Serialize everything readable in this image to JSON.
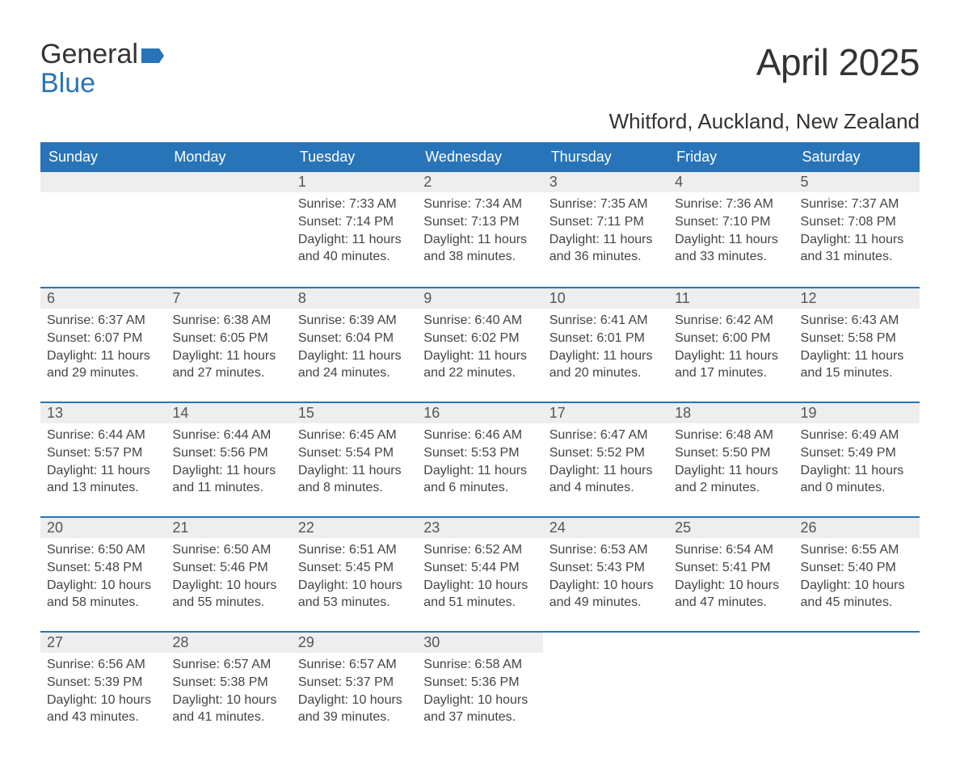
{
  "logo": {
    "word1": "General",
    "word2": "Blue",
    "flag_color": "#2874b8"
  },
  "title": "April 2025",
  "location": "Whitford, Auckland, New Zealand",
  "colors": {
    "header_bg": "#2874b8",
    "header_text": "#ffffff",
    "daynum_bg": "#eeeeee",
    "row_border": "#2874b8",
    "text": "#333333",
    "body_text": "#444444"
  },
  "typography": {
    "title_fontsize": 46,
    "location_fontsize": 26,
    "header_fontsize": 18,
    "daynum_fontsize": 18,
    "body_fontsize": 16
  },
  "weekdays": [
    "Sunday",
    "Monday",
    "Tuesday",
    "Wednesday",
    "Thursday",
    "Friday",
    "Saturday"
  ],
  "weeks": [
    [
      null,
      null,
      {
        "n": "1",
        "sr": "Sunrise: 7:33 AM",
        "ss": "Sunset: 7:14 PM",
        "d1": "Daylight: 11 hours",
        "d2": "and 40 minutes."
      },
      {
        "n": "2",
        "sr": "Sunrise: 7:34 AM",
        "ss": "Sunset: 7:13 PM",
        "d1": "Daylight: 11 hours",
        "d2": "and 38 minutes."
      },
      {
        "n": "3",
        "sr": "Sunrise: 7:35 AM",
        "ss": "Sunset: 7:11 PM",
        "d1": "Daylight: 11 hours",
        "d2": "and 36 minutes."
      },
      {
        "n": "4",
        "sr": "Sunrise: 7:36 AM",
        "ss": "Sunset: 7:10 PM",
        "d1": "Daylight: 11 hours",
        "d2": "and 33 minutes."
      },
      {
        "n": "5",
        "sr": "Sunrise: 7:37 AM",
        "ss": "Sunset: 7:08 PM",
        "d1": "Daylight: 11 hours",
        "d2": "and 31 minutes."
      }
    ],
    [
      {
        "n": "6",
        "sr": "Sunrise: 6:37 AM",
        "ss": "Sunset: 6:07 PM",
        "d1": "Daylight: 11 hours",
        "d2": "and 29 minutes."
      },
      {
        "n": "7",
        "sr": "Sunrise: 6:38 AM",
        "ss": "Sunset: 6:05 PM",
        "d1": "Daylight: 11 hours",
        "d2": "and 27 minutes."
      },
      {
        "n": "8",
        "sr": "Sunrise: 6:39 AM",
        "ss": "Sunset: 6:04 PM",
        "d1": "Daylight: 11 hours",
        "d2": "and 24 minutes."
      },
      {
        "n": "9",
        "sr": "Sunrise: 6:40 AM",
        "ss": "Sunset: 6:02 PM",
        "d1": "Daylight: 11 hours",
        "d2": "and 22 minutes."
      },
      {
        "n": "10",
        "sr": "Sunrise: 6:41 AM",
        "ss": "Sunset: 6:01 PM",
        "d1": "Daylight: 11 hours",
        "d2": "and 20 minutes."
      },
      {
        "n": "11",
        "sr": "Sunrise: 6:42 AM",
        "ss": "Sunset: 6:00 PM",
        "d1": "Daylight: 11 hours",
        "d2": "and 17 minutes."
      },
      {
        "n": "12",
        "sr": "Sunrise: 6:43 AM",
        "ss": "Sunset: 5:58 PM",
        "d1": "Daylight: 11 hours",
        "d2": "and 15 minutes."
      }
    ],
    [
      {
        "n": "13",
        "sr": "Sunrise: 6:44 AM",
        "ss": "Sunset: 5:57 PM",
        "d1": "Daylight: 11 hours",
        "d2": "and 13 minutes."
      },
      {
        "n": "14",
        "sr": "Sunrise: 6:44 AM",
        "ss": "Sunset: 5:56 PM",
        "d1": "Daylight: 11 hours",
        "d2": "and 11 minutes."
      },
      {
        "n": "15",
        "sr": "Sunrise: 6:45 AM",
        "ss": "Sunset: 5:54 PM",
        "d1": "Daylight: 11 hours",
        "d2": "and 8 minutes."
      },
      {
        "n": "16",
        "sr": "Sunrise: 6:46 AM",
        "ss": "Sunset: 5:53 PM",
        "d1": "Daylight: 11 hours",
        "d2": "and 6 minutes."
      },
      {
        "n": "17",
        "sr": "Sunrise: 6:47 AM",
        "ss": "Sunset: 5:52 PM",
        "d1": "Daylight: 11 hours",
        "d2": "and 4 minutes."
      },
      {
        "n": "18",
        "sr": "Sunrise: 6:48 AM",
        "ss": "Sunset: 5:50 PM",
        "d1": "Daylight: 11 hours",
        "d2": "and 2 minutes."
      },
      {
        "n": "19",
        "sr": "Sunrise: 6:49 AM",
        "ss": "Sunset: 5:49 PM",
        "d1": "Daylight: 11 hours",
        "d2": "and 0 minutes."
      }
    ],
    [
      {
        "n": "20",
        "sr": "Sunrise: 6:50 AM",
        "ss": "Sunset: 5:48 PM",
        "d1": "Daylight: 10 hours",
        "d2": "and 58 minutes."
      },
      {
        "n": "21",
        "sr": "Sunrise: 6:50 AM",
        "ss": "Sunset: 5:46 PM",
        "d1": "Daylight: 10 hours",
        "d2": "and 55 minutes."
      },
      {
        "n": "22",
        "sr": "Sunrise: 6:51 AM",
        "ss": "Sunset: 5:45 PM",
        "d1": "Daylight: 10 hours",
        "d2": "and 53 minutes."
      },
      {
        "n": "23",
        "sr": "Sunrise: 6:52 AM",
        "ss": "Sunset: 5:44 PM",
        "d1": "Daylight: 10 hours",
        "d2": "and 51 minutes."
      },
      {
        "n": "24",
        "sr": "Sunrise: 6:53 AM",
        "ss": "Sunset: 5:43 PM",
        "d1": "Daylight: 10 hours",
        "d2": "and 49 minutes."
      },
      {
        "n": "25",
        "sr": "Sunrise: 6:54 AM",
        "ss": "Sunset: 5:41 PM",
        "d1": "Daylight: 10 hours",
        "d2": "and 47 minutes."
      },
      {
        "n": "26",
        "sr": "Sunrise: 6:55 AM",
        "ss": "Sunset: 5:40 PM",
        "d1": "Daylight: 10 hours",
        "d2": "and 45 minutes."
      }
    ],
    [
      {
        "n": "27",
        "sr": "Sunrise: 6:56 AM",
        "ss": "Sunset: 5:39 PM",
        "d1": "Daylight: 10 hours",
        "d2": "and 43 minutes."
      },
      {
        "n": "28",
        "sr": "Sunrise: 6:57 AM",
        "ss": "Sunset: 5:38 PM",
        "d1": "Daylight: 10 hours",
        "d2": "and 41 minutes."
      },
      {
        "n": "29",
        "sr": "Sunrise: 6:57 AM",
        "ss": "Sunset: 5:37 PM",
        "d1": "Daylight: 10 hours",
        "d2": "and 39 minutes."
      },
      {
        "n": "30",
        "sr": "Sunrise: 6:58 AM",
        "ss": "Sunset: 5:36 PM",
        "d1": "Daylight: 10 hours",
        "d2": "and 37 minutes."
      },
      null,
      null,
      null
    ]
  ]
}
